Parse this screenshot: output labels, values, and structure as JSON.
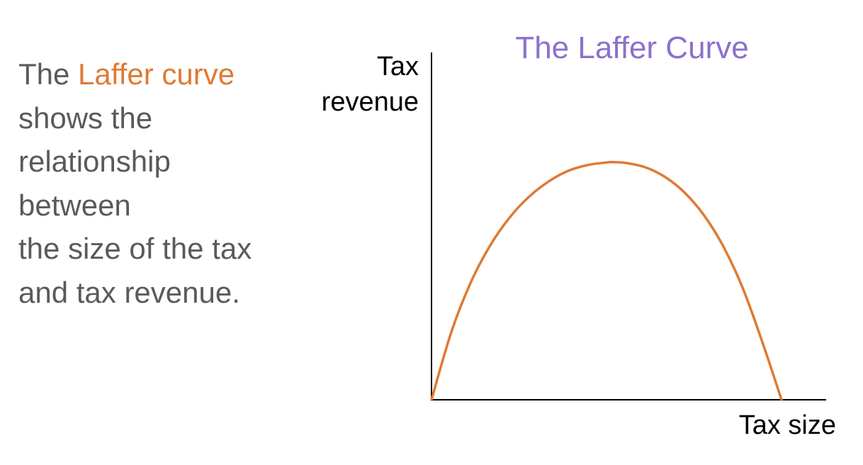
{
  "description": {
    "line1_prefix": "The ",
    "line1_highlight": "Laffer curve",
    "line2": "shows the",
    "line3": "relationship",
    "line4": "between",
    "line5": "the size of the tax",
    "line6": "and tax revenue."
  },
  "chart_data": {
    "type": "line",
    "title": "The Laffer Curve",
    "ylabel": [
      "Tax",
      "revenue"
    ],
    "xlabel": "Tax size",
    "xlim": [
      0,
      100
    ],
    "ylim": [
      0,
      100
    ],
    "grid": false,
    "series": [
      {
        "color": "#de7a34",
        "x": [
          0,
          5,
          10,
          15,
          20,
          25,
          30,
          35,
          40,
          45,
          47,
          50,
          55,
          60,
          65,
          70,
          75,
          80,
          85,
          90
        ],
        "y": [
          0,
          24.5,
          42.8,
          56.5,
          66.8,
          74.5,
          80.1,
          84.0,
          86.2,
          87.2,
          87.3,
          87.0,
          85.4,
          81.9,
          76.2,
          67.9,
          56.4,
          41.1,
          21.4,
          0
        ]
      }
    ]
  },
  "colors": {
    "highlight": "#de7a34",
    "title": "#8c70cc",
    "body_text": "#5a5a5a",
    "axis": "#000000"
  }
}
